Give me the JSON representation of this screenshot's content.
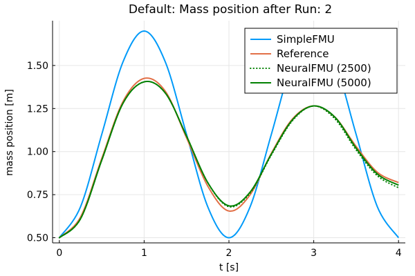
{
  "chart_data": {
    "type": "line",
    "title": "Default: Mass position after Run: 2",
    "xlabel": "t [s]",
    "ylabel": "mass position [m]",
    "xlim": [
      -0.08,
      4.08
    ],
    "ylim": [
      0.47,
      1.76
    ],
    "xticks": [
      0,
      1,
      2,
      3,
      4
    ],
    "xtick_labels": [
      "0",
      "1",
      "2",
      "3",
      "4"
    ],
    "yticks": [
      0.5,
      0.75,
      1.0,
      1.25,
      1.5
    ],
    "ytick_labels": [
      "0.50",
      "0.75",
      "1.00",
      "1.25",
      "1.50"
    ],
    "grid": true,
    "legend_position": "top-right",
    "x": [
      0,
      0.25,
      0.5,
      0.75,
      1.0,
      1.25,
      1.5,
      1.75,
      2.0,
      2.25,
      2.5,
      2.75,
      3.0,
      3.25,
      3.5,
      3.75,
      4.0
    ],
    "series": [
      {
        "name": "SimpleFMU",
        "color": "#009af9",
        "style": "solid",
        "values": [
          0.5,
          0.68,
          1.1,
          1.52,
          1.7,
          1.52,
          1.1,
          0.68,
          0.5,
          0.68,
          1.1,
          1.52,
          1.7,
          1.52,
          1.1,
          0.68,
          0.5
        ]
      },
      {
        "name": "Reference",
        "color": "#e26f46",
        "style": "solid",
        "values": [
          0.5,
          0.62,
          0.96,
          1.29,
          1.425,
          1.35,
          1.08,
          0.8,
          0.655,
          0.75,
          0.99,
          1.19,
          1.265,
          1.2,
          1.03,
          0.88,
          0.82
        ]
      },
      {
        "name": "NeuralFMU (2500)",
        "color": "#008000",
        "style": "dotted",
        "values": [
          0.5,
          0.61,
          0.95,
          1.28,
          1.405,
          1.34,
          1.09,
          0.82,
          0.68,
          0.76,
          0.98,
          1.18,
          1.265,
          1.19,
          1.01,
          0.86,
          0.79
        ]
      },
      {
        "name": "NeuralFMU (5000)",
        "color": "#008000",
        "style": "solid",
        "values": [
          0.5,
          0.61,
          0.95,
          1.28,
          1.405,
          1.34,
          1.09,
          0.82,
          0.685,
          0.765,
          0.985,
          1.185,
          1.265,
          1.2,
          1.02,
          0.87,
          0.805
        ]
      }
    ]
  }
}
